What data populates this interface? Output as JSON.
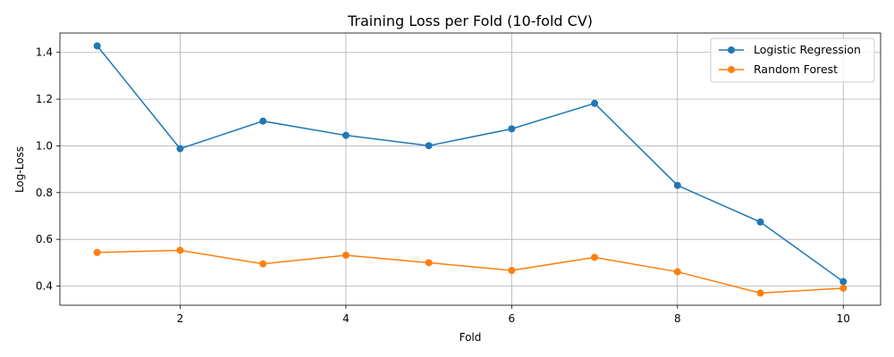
{
  "chart_data": {
    "type": "line",
    "title": "Training Loss per Fold (10-fold CV)",
    "xlabel": "Fold",
    "ylabel": "Log-Loss",
    "x": [
      1,
      2,
      3,
      4,
      5,
      6,
      7,
      8,
      9,
      10
    ],
    "xlim": [
      0.55,
      10.45
    ],
    "ylim": [
      0.318,
      1.483
    ],
    "xticks": [
      2,
      4,
      6,
      8,
      10
    ],
    "yticks": [
      0.4,
      0.6,
      0.8,
      1.0,
      1.2,
      1.4
    ],
    "xtick_labels": [
      "2",
      "4",
      "6",
      "8",
      "10"
    ],
    "ytick_labels": [
      "0.4",
      "0.6",
      "0.8",
      "1.0",
      "1.2",
      "1.4"
    ],
    "grid": true,
    "legend_position": "top-right",
    "series": [
      {
        "name": "Logistic Regression",
        "color": "#1f77b4",
        "marker": "circle",
        "values": [
          1.428,
          0.988,
          1.106,
          1.045,
          1.001,
          1.073,
          1.182,
          0.831,
          0.674,
          0.419
        ]
      },
      {
        "name": "Random Forest",
        "color": "#ff7f0e",
        "marker": "circle",
        "values": [
          0.544,
          0.553,
          0.495,
          0.532,
          0.5,
          0.467,
          0.523,
          0.461,
          0.37,
          0.391
        ]
      }
    ]
  }
}
